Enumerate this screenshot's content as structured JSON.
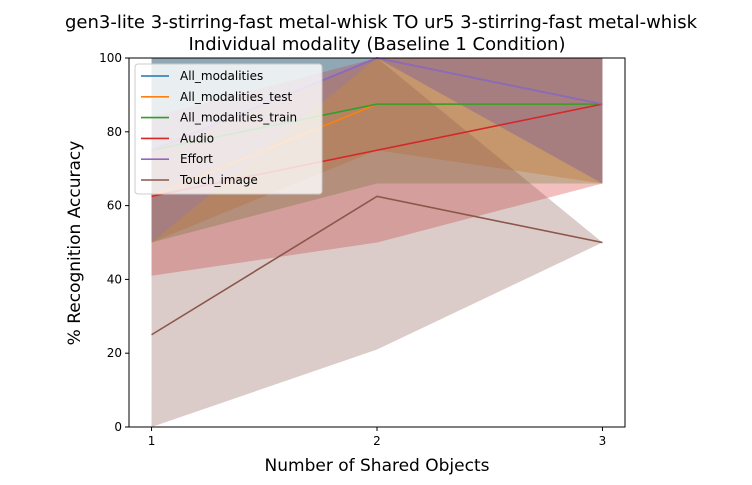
{
  "chart_data": {
    "type": "line",
    "title": "gen3-lite 3-stirring-fast metal-whisk TO ur5 3-stirring-fast metal-whisk",
    "subtitle": "Individual modality (Baseline 1 Condition)",
    "xlabel": "Number of Shared Objects",
    "ylabel": "% Recognition Accuracy",
    "x": [
      1,
      2,
      3
    ],
    "xticks": [
      "1",
      "2",
      "3"
    ],
    "xlim": [
      0.9,
      3.1
    ],
    "ylim": [
      0,
      100
    ],
    "yticks": [
      "0",
      "20",
      "40",
      "60",
      "80",
      "100"
    ],
    "legend_position": "upper-left",
    "grid": false,
    "series": [
      {
        "name": "All_modalities",
        "color": "#1f77b4",
        "values": [
          75,
          100,
          87.5
        ],
        "lower": [
          50,
          100,
          66
        ],
        "upper": [
          100,
          100,
          100
        ]
      },
      {
        "name": "All_modalities_test",
        "color": "#ff7f0e",
        "values": [
          62.5,
          87.5,
          87.5
        ],
        "lower": [
          50,
          75,
          66
        ],
        "upper": [
          75,
          100,
          100
        ]
      },
      {
        "name": "All_modalities_train",
        "color": "#2ca02c",
        "values": [
          75,
          87.5,
          87.5
        ],
        "lower": [
          50,
          66,
          66
        ],
        "upper": [
          100,
          100,
          100
        ]
      },
      {
        "name": "Audio",
        "color": "#d62728",
        "values": [
          62.5,
          75,
          87.5
        ],
        "lower": [
          41,
          50,
          66
        ],
        "upper": [
          84,
          100,
          100
        ]
      },
      {
        "name": "Effort",
        "color": "#9467bd",
        "values": [
          75,
          100,
          87.5
        ],
        "lower": [
          50,
          100,
          66
        ],
        "upper": [
          100,
          100,
          100
        ]
      },
      {
        "name": "Touch_image",
        "color": "#8c564b",
        "values": [
          25,
          62.5,
          50
        ],
        "lower": [
          0,
          21,
          50
        ],
        "upper": [
          50,
          100,
          50
        ]
      }
    ]
  }
}
